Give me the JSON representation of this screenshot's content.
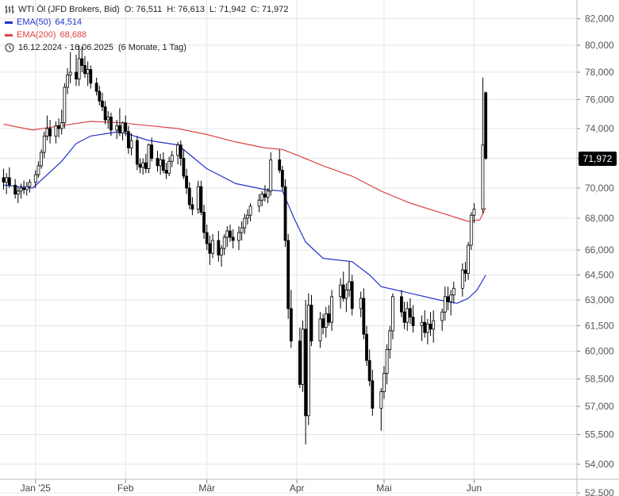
{
  "legend": {
    "instrument": "WTI Öl (JFD Brokers, Bid)",
    "open": "O: 76,511",
    "high": "H: 76,613",
    "low": "L: 71,942",
    "close": "C: 71,972",
    "ema50_label": "EMA(50)",
    "ema50_value": "64,514",
    "ema200_label": "EMA(200)",
    "ema200_value": "68,688",
    "range": "16.12.2024 - 16.06.2025",
    "period": "(6 Monate, 1 Tag)"
  },
  "colors": {
    "ema50": "#2233cc",
    "ema200": "#dd4444",
    "candle": "#000000",
    "grid": "#e4e4e4",
    "price_tag": "#000000"
  },
  "chart_data": {
    "type": "candlestick",
    "y_axis_ticks": [
      "82,000",
      "80,000",
      "78,000",
      "76,000",
      "74,000",
      "72,000",
      "70,000",
      "68,000",
      "66,000",
      "64,500",
      "63,000",
      "61,500",
      "60,000",
      "58,500",
      "57,000",
      "55,500",
      "54,000",
      "52,500"
    ],
    "y_tick_values": [
      82,
      80,
      78,
      76,
      74,
      72,
      70,
      68,
      66,
      64.5,
      63,
      61.5,
      60,
      58.5,
      57,
      55.5,
      54,
      52.5
    ],
    "x_axis_ticks": [
      {
        "label": "Jan '25",
        "day": 11
      },
      {
        "label": "Feb",
        "day": 42
      },
      {
        "label": "Mär",
        "day": 70
      },
      {
        "label": "Apr",
        "day": 101
      },
      {
        "label": "Mai",
        "day": 131
      },
      {
        "label": "Jun",
        "day": 162
      }
    ],
    "last_price_label": "71,972",
    "last_price": 71.972,
    "candles": [
      [
        0,
        70.7,
        71.3,
        69.9,
        70.4
      ],
      [
        1,
        70.4,
        71.0,
        69.6,
        70.7
      ],
      [
        2,
        70.7,
        71.4,
        70.0,
        70.2
      ],
      [
        4,
        70.2,
        70.6,
        69.3,
        69.6
      ],
      [
        5,
        69.6,
        70.1,
        69.0,
        69.8
      ],
      [
        6,
        69.8,
        70.3,
        69.3,
        70.0
      ],
      [
        7,
        70.0,
        70.5,
        69.6,
        69.9
      ],
      [
        8,
        69.9,
        70.4,
        69.5,
        70.1
      ],
      [
        9,
        70.1,
        70.6,
        69.7,
        70.4
      ],
      [
        11,
        70.4,
        71.2,
        70.0,
        70.9
      ],
      [
        12,
        70.9,
        71.8,
        70.7,
        71.5
      ],
      [
        13,
        71.5,
        72.6,
        71.3,
        72.4
      ],
      [
        14,
        72.4,
        73.8,
        72.0,
        73.5
      ],
      [
        15,
        73.5,
        74.9,
        73.2,
        74.0
      ],
      [
        16,
        74.0,
        74.6,
        73.0,
        73.5
      ],
      [
        18,
        73.5,
        74.5,
        73.0,
        74.2
      ],
      [
        19,
        74.2,
        74.7,
        73.4,
        74.0
      ],
      [
        20,
        74.0,
        75.3,
        73.6,
        74.4
      ],
      [
        21,
        74.4,
        77.2,
        74.0,
        76.9
      ],
      [
        22,
        76.9,
        78.3,
        76.4,
        77.8
      ],
      [
        23,
        77.8,
        79.5,
        77.2,
        78.0
      ],
      [
        25,
        78.0,
        79.3,
        77.0,
        77.5
      ],
      [
        26,
        77.5,
        80.0,
        77.0,
        79.0
      ],
      [
        27,
        79.0,
        79.9,
        78.0,
        78.5
      ],
      [
        28,
        78.5,
        79.2,
        77.6,
        77.9
      ],
      [
        29,
        77.9,
        78.8,
        77.0,
        78.2
      ],
      [
        30,
        78.2,
        78.5,
        76.8,
        77.2
      ],
      [
        32,
        77.2,
        77.6,
        76.3,
        76.6
      ],
      [
        33,
        76.6,
        77.0,
        75.6,
        75.9
      ],
      [
        34,
        75.9,
        76.5,
        75.2,
        75.5
      ],
      [
        35,
        75.5,
        75.9,
        74.3,
        74.6
      ],
      [
        36,
        74.6,
        75.2,
        74.0,
        74.8
      ],
      [
        37,
        74.8,
        75.1,
        73.5,
        73.9
      ],
      [
        39,
        73.9,
        74.6,
        73.3,
        74.2
      ],
      [
        40,
        74.2,
        75.4,
        73.5,
        73.7
      ],
      [
        41,
        73.7,
        74.5,
        73.2,
        74.4
      ],
      [
        42,
        74.4,
        74.9,
        73.5,
        73.8
      ],
      [
        43,
        73.8,
        74.2,
        72.3,
        72.7
      ],
      [
        44,
        72.7,
        73.7,
        72.2,
        73.2
      ],
      [
        46,
        73.2,
        73.5,
        71.2,
        71.6
      ],
      [
        47,
        71.6,
        72.0,
        71.0,
        71.4
      ],
      [
        48,
        71.4,
        72.0,
        70.9,
        71.7
      ],
      [
        49,
        71.7,
        72.3,
        71.0,
        71.3
      ],
      [
        50,
        71.3,
        73.0,
        71.0,
        72.9
      ],
      [
        51,
        72.9,
        73.4,
        71.8,
        72.0
      ],
      [
        53,
        72.0,
        72.5,
        71.1,
        71.5
      ],
      [
        54,
        71.5,
        72.3,
        70.9,
        71.9
      ],
      [
        55,
        71.9,
        72.4,
        71.0,
        71.2
      ],
      [
        56,
        71.2,
        71.7,
        70.6,
        71.0
      ],
      [
        57,
        71.0,
        72.1,
        70.8,
        71.8
      ],
      [
        58,
        71.8,
        72.5,
        71.4,
        72.2
      ],
      [
        60,
        72.2,
        73.1,
        71.6,
        72.9
      ],
      [
        61,
        72.9,
        73.2,
        71.5,
        72.0
      ],
      [
        62,
        72.0,
        72.6,
        70.6,
        70.8
      ],
      [
        63,
        70.8,
        71.3,
        69.6,
        70.0
      ],
      [
        64,
        70.0,
        70.4,
        68.6,
        68.9
      ],
      [
        65,
        68.9,
        69.4,
        68.2,
        68.6
      ],
      [
        67,
        68.6,
        70.5,
        68.3,
        70.1
      ],
      [
        68,
        70.1,
        70.5,
        68.2,
        68.4
      ],
      [
        69,
        68.4,
        68.9,
        66.7,
        67.1
      ],
      [
        70,
        67.1,
        67.6,
        66.0,
        66.4
      ],
      [
        71,
        66.4,
        66.9,
        65.1,
        65.8
      ],
      [
        72,
        65.8,
        67.0,
        65.5,
        66.6
      ],
      [
        74,
        66.6,
        67.2,
        65.3,
        65.7
      ],
      [
        75,
        65.7,
        66.3,
        65.0,
        66.1
      ],
      [
        76,
        66.1,
        67.0,
        65.7,
        66.8
      ],
      [
        77,
        66.8,
        67.5,
        66.2,
        67.2
      ],
      [
        78,
        67.2,
        67.6,
        66.5,
        66.8
      ],
      [
        79,
        66.8,
        67.3,
        66.1,
        66.6
      ],
      [
        81,
        66.6,
        67.5,
        66.0,
        67.1
      ],
      [
        82,
        67.1,
        67.8,
        66.6,
        67.4
      ],
      [
        83,
        67.4,
        68.3,
        67.0,
        68.0
      ],
      [
        84,
        68.0,
        68.6,
        67.6,
        68.2
      ],
      [
        85,
        68.2,
        69.0,
        67.8,
        68.8
      ],
      [
        88,
        68.8,
        69.6,
        68.4,
        69.2
      ],
      [
        89,
        69.2,
        69.8,
        68.8,
        69.6
      ],
      [
        90,
        69.6,
        70.2,
        69.1,
        69.4
      ],
      [
        91,
        69.4,
        70.0,
        69.0,
        69.8
      ],
      [
        92,
        69.8,
        72.4,
        69.5,
        71.9
      ],
      [
        95,
        71.9,
        72.6,
        71.0,
        71.2
      ],
      [
        96,
        71.2,
        71.5,
        69.8,
        70.1
      ],
      [
        97,
        70.1,
        70.6,
        66.2,
        66.6
      ],
      [
        98,
        66.6,
        67.0,
        61.9,
        62.5
      ],
      [
        99,
        62.5,
        63.6,
        60.2,
        60.6
      ],
      [
        102,
        60.6,
        61.4,
        58.0,
        58.2
      ],
      [
        103,
        58.2,
        61.8,
        57.8,
        61.3
      ],
      [
        104,
        61.3,
        63.0,
        55.0,
        56.5
      ],
      [
        105,
        56.5,
        63.4,
        56.0,
        62.7
      ],
      [
        106,
        62.7,
        63.3,
        60.3,
        60.6
      ],
      [
        109,
        60.6,
        62.3,
        60.2,
        61.9
      ],
      [
        110,
        61.9,
        62.2,
        61.0,
        61.4
      ],
      [
        111,
        61.4,
        62.6,
        60.8,
        62.2
      ],
      [
        112,
        62.2,
        62.7,
        61.5,
        61.7
      ],
      [
        113,
        61.7,
        63.6,
        61.2,
        63.2
      ],
      [
        116,
        63.2,
        64.3,
        62.5,
        63.9
      ],
      [
        117,
        63.9,
        64.7,
        62.9,
        63.1
      ],
      [
        118,
        63.1,
        64.0,
        62.3,
        63.6
      ],
      [
        119,
        63.6,
        65.3,
        63.2,
        64.1
      ],
      [
        120,
        64.1,
        64.5,
        62.1,
        62.5
      ],
      [
        123,
        62.5,
        63.5,
        62.0,
        63.1
      ],
      [
        124,
        63.1,
        63.7,
        60.7,
        61.0
      ],
      [
        125,
        61.0,
        61.5,
        59.2,
        59.5
      ],
      [
        126,
        59.5,
        60.1,
        58.1,
        58.4
      ],
      [
        127,
        58.4,
        59.0,
        56.5,
        56.9
      ],
      [
        130,
        56.9,
        58.0,
        55.7,
        57.8
      ],
      [
        131,
        57.8,
        59.2,
        57.4,
        58.8
      ],
      [
        132,
        58.8,
        60.4,
        58.2,
        60.1
      ],
      [
        133,
        60.1,
        61.5,
        59.6,
        61.2
      ],
      [
        134,
        61.2,
        63.4,
        60.7,
        63.2
      ],
      [
        137,
        63.2,
        63.6,
        62.0,
        62.3
      ],
      [
        138,
        62.3,
        62.9,
        61.3,
        61.7
      ],
      [
        139,
        61.7,
        62.9,
        61.2,
        62.5
      ],
      [
        140,
        62.5,
        63.1,
        61.6,
        62.0
      ],
      [
        141,
        62.0,
        62.7,
        61.1,
        61.5
      ],
      [
        144,
        61.5,
        62.1,
        60.6,
        61.7
      ],
      [
        145,
        61.7,
        62.4,
        60.8,
        61.1
      ],
      [
        146,
        61.1,
        61.9,
        60.4,
        61.6
      ],
      [
        147,
        61.6,
        62.3,
        60.9,
        61.3
      ],
      [
        148,
        61.3,
        62.4,
        60.5,
        61.8
      ],
      [
        151,
        61.8,
        62.5,
        61.2,
        62.3
      ],
      [
        152,
        62.3,
        63.8,
        61.8,
        63.2
      ],
      [
        153,
        63.2,
        63.8,
        62.4,
        62.9
      ],
      [
        154,
        62.9,
        63.6,
        62.1,
        63.3
      ],
      [
        155,
        63.3,
        64.1,
        62.8,
        63.7
      ],
      [
        158,
        63.7,
        65.2,
        63.2,
        64.8
      ],
      [
        159,
        64.8,
        65.3,
        64.1,
        64.6
      ],
      [
        160,
        64.6,
        66.5,
        64.2,
        66.3
      ],
      [
        161,
        66.3,
        68.4,
        66.0,
        68.2
      ],
      [
        162,
        68.2,
        69.0,
        67.7,
        68.6
      ],
      [
        165,
        68.6,
        77.6,
        68.3,
        72.9
      ],
      [
        166,
        76.5,
        76.6,
        71.9,
        72.0
      ]
    ],
    "ema50": [
      [
        0,
        70.2
      ],
      [
        10,
        70.0
      ],
      [
        20,
        71.8
      ],
      [
        25,
        73.0
      ],
      [
        30,
        73.5
      ],
      [
        40,
        73.8
      ],
      [
        50,
        73.2
      ],
      [
        60,
        72.9
      ],
      [
        70,
        71.3
      ],
      [
        80,
        70.3
      ],
      [
        90,
        69.9
      ],
      [
        96,
        69.8
      ],
      [
        100,
        68.0
      ],
      [
        104,
        66.5
      ],
      [
        110,
        65.5
      ],
      [
        120,
        65.3
      ],
      [
        126,
        64.5
      ],
      [
        130,
        63.8
      ],
      [
        140,
        63.4
      ],
      [
        150,
        63.0
      ],
      [
        156,
        62.8
      ],
      [
        160,
        63.1
      ],
      [
        163,
        63.6
      ],
      [
        166,
        64.5
      ]
    ],
    "ema200": [
      [
        0,
        74.3
      ],
      [
        10,
        73.9
      ],
      [
        20,
        74.2
      ],
      [
        30,
        74.5
      ],
      [
        40,
        74.4
      ],
      [
        50,
        74.2
      ],
      [
        60,
        74.0
      ],
      [
        70,
        73.6
      ],
      [
        80,
        73.1
      ],
      [
        90,
        72.7
      ],
      [
        96,
        72.6
      ],
      [
        100,
        72.3
      ],
      [
        110,
        71.5
      ],
      [
        120,
        70.8
      ],
      [
        130,
        69.8
      ],
      [
        140,
        69.0
      ],
      [
        150,
        68.4
      ],
      [
        160,
        67.8
      ],
      [
        164,
        67.9
      ],
      [
        166,
        68.7
      ]
    ]
  }
}
